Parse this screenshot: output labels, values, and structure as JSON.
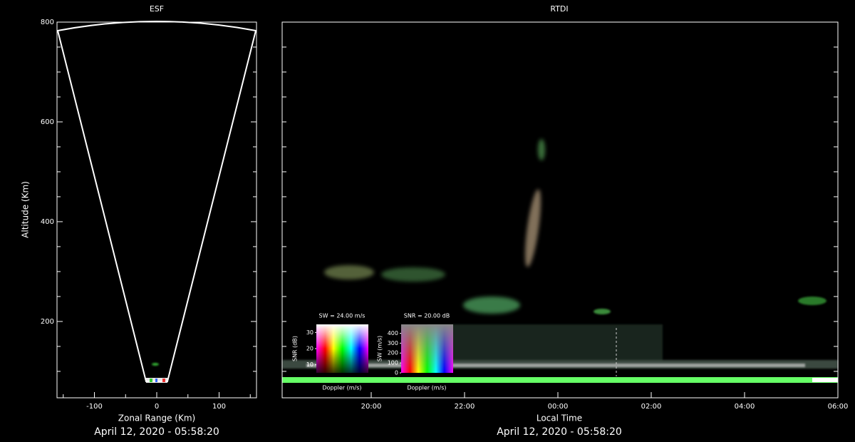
{
  "chart_data": [
    {
      "type": "fan",
      "title": "ESF",
      "x_label": "Zonal Range (Km)",
      "y_label": "Altitude (Km)",
      "xlim": [
        -160,
        160
      ],
      "ylim": [
        47,
        800
      ],
      "xticks": [
        -100,
        0,
        100
      ],
      "minor_xticks": [
        -150,
        -50,
        50,
        150
      ],
      "yticks": [
        200,
        400,
        600,
        800
      ],
      "minor_yticks": [
        100,
        150,
        250,
        300,
        350,
        450,
        500,
        550,
        650,
        700,
        750
      ],
      "footer": "April 12, 2020 - 05:58:20"
    },
    {
      "type": "rtdi",
      "title": "RTDI",
      "x_label": "Local Time",
      "xticks": [
        "20:00",
        "22:00",
        "00:00",
        "02:00",
        "04:00",
        "06:00"
      ],
      "ylim": [
        47,
        800
      ],
      "minor_yticks": [
        100,
        150,
        200,
        250,
        300,
        350,
        400,
        450,
        500,
        550,
        600,
        650,
        700,
        750
      ],
      "footer": "April 12, 2020 - 05:58:20",
      "legends": [
        {
          "title": "SW = 24.00 m/s",
          "y_label": "SNR (dB)",
          "ylim": [
            5,
            35
          ],
          "yticks": [
            10,
            20,
            30
          ],
          "x_label": "Doppler (m/s)"
        },
        {
          "title": "SNR = 20.00 dB",
          "y_label": "SW (m/s)",
          "ylim": [
            0,
            490
          ],
          "yticks": [
            0,
            100,
            200,
            300,
            400
          ],
          "x_label": "Doppler (m/s)"
        }
      ]
    }
  ]
}
